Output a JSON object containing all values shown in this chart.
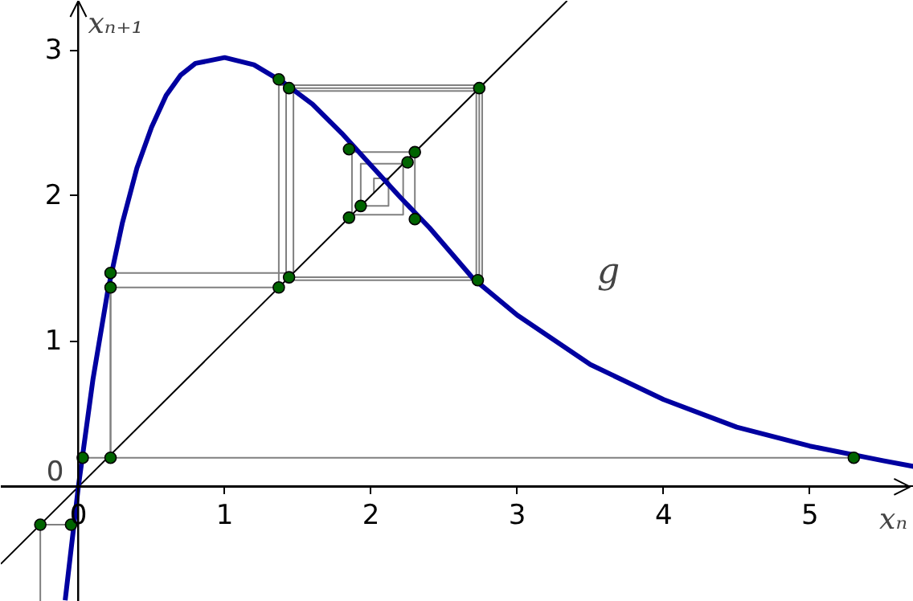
{
  "chart_data": {
    "type": "line",
    "xlabel": "xₙ",
    "ylabel": "xₙ₊₁",
    "xlim": [
      -0.53,
      5.71
    ],
    "ylim": [
      -0.79,
      3.34
    ],
    "xticks": [
      0,
      1,
      2,
      3,
      4,
      5
    ],
    "yticks": [
      0,
      1,
      2,
      3
    ],
    "grid": false,
    "annotations": [
      "g"
    ],
    "series": [
      {
        "color": "#808080",
        "x": [
          5.3,
          0.22,
          0.22,
          1.37,
          1.37,
          2.76,
          2.76,
          1.42,
          1.42,
          2.74,
          2.74,
          1.44
        ],
        "values": [
          0.2,
          0.2,
          1.37,
          1.37,
          2.76,
          2.76,
          1.42,
          1.42,
          2.74,
          2.74,
          1.44,
          1.44
        ]
      },
      {
        "color": "#808080",
        "x": [
          0.03,
          0.22,
          0.22,
          1.47,
          1.47,
          2.72,
          2.72
        ],
        "values": [
          0.2,
          0.2,
          1.47,
          1.47,
          2.72,
          2.72,
          1.45
        ]
      },
      {
        "color": "#808080",
        "x": [
          2.02,
          2.02,
          2.12,
          2.12,
          1.93,
          1.93,
          2.22,
          2.22,
          1.87,
          1.87,
          2.3,
          2.3
        ],
        "values": [
          2.02,
          2.12,
          2.12,
          1.93,
          1.93,
          2.22,
          2.22,
          1.87,
          1.87,
          2.3,
          2.3,
          1.84
        ]
      },
      {
        "color": "#808080",
        "x": [
          -0.26,
          -0.26,
          -0.05
        ],
        "values": [
          -0.79,
          -0.26,
          -0.26
        ]
      },
      {
        "color": "#000000",
        "x": [
          -0.53,
          3.34
        ],
        "values": [
          -0.53,
          3.34
        ]
      },
      {
        "color": "#0000a0",
        "x": [
          -0.09,
          0,
          0.1,
          0.2,
          0.3,
          0.4,
          0.5,
          0.6,
          0.7,
          0.8,
          1.0,
          1.2,
          1.4,
          1.6,
          1.8,
          2.0,
          2.2,
          2.4,
          2.7,
          3.0,
          3.5,
          4.0,
          4.5,
          5.0,
          5.5,
          5.71
        ],
        "values": [
          -0.78,
          0,
          0.74,
          1.34,
          1.81,
          2.19,
          2.47,
          2.69,
          2.83,
          2.91,
          2.95,
          2.9,
          2.78,
          2.63,
          2.43,
          2.21,
          1.99,
          1.78,
          1.43,
          1.18,
          0.84,
          0.6,
          0.41,
          0.28,
          0.18,
          0.14
        ]
      },
      {
        "type": "scatter",
        "color": "#006400",
        "marker": "circle",
        "x": [
          -0.26,
          -0.05,
          0.03,
          0.22,
          0.22,
          0.22,
          1.37,
          1.44,
          1.37,
          1.44,
          2.74,
          2.73,
          1.85,
          2.3,
          2.25,
          2.3,
          1.85,
          1.93,
          5.3
        ],
        "values": [
          -0.26,
          -0.26,
          0.2,
          0.2,
          1.47,
          1.37,
          1.37,
          1.44,
          2.8,
          2.74,
          2.74,
          1.42,
          2.32,
          2.3,
          2.23,
          1.84,
          1.85,
          1.93,
          0.2
        ]
      }
    ]
  }
}
